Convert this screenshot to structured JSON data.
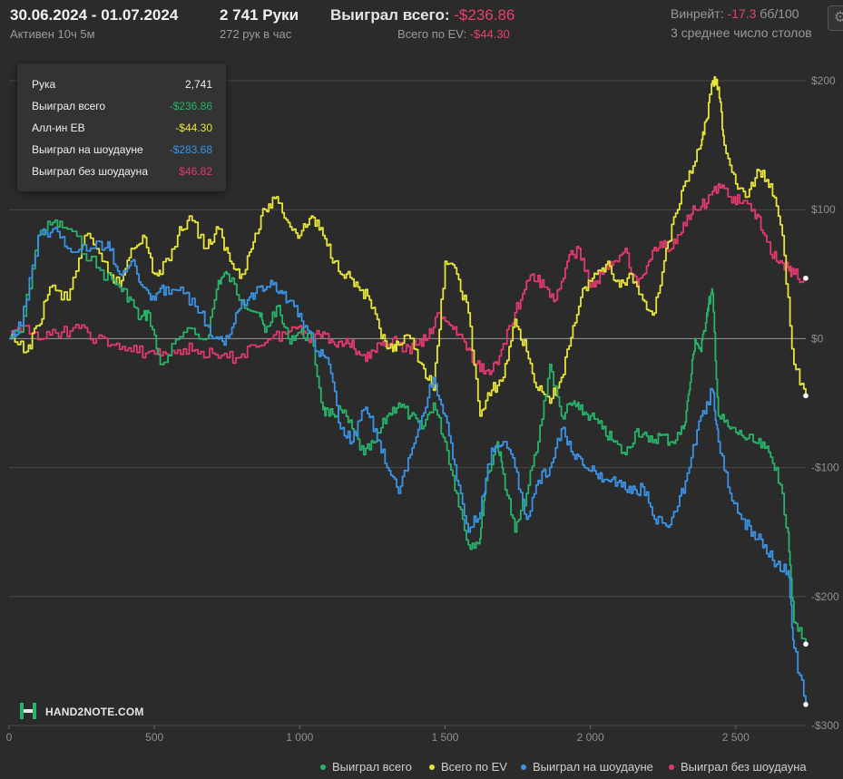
{
  "header": {
    "date_range": "30.06.2024 - 01.07.2024",
    "active": "Активен 10ч 5м",
    "hands": "2 741 Руки",
    "hands_per_hour": "272 рук в час",
    "won_total_label": "Выиграл всего:",
    "won_total_value": "-$236.86",
    "ev_label": "Всего по EV:",
    "ev_value": "-$44.30",
    "winrate_label": "Винрейт:",
    "winrate_value": "-17.3",
    "winrate_unit": "бб/100",
    "tables": "3 среднее число столов"
  },
  "tooltip": {
    "rows": [
      {
        "label": "Рука",
        "value": "2,741",
        "color": "#f0f0f0"
      },
      {
        "label": "Выиграл всего",
        "value": "-$236.86",
        "color": "#27b36a"
      },
      {
        "label": "Алл-ин EB",
        "value": "-$44.30",
        "color": "#e8e53a"
      },
      {
        "label": "Выиграл на шоудауне",
        "value": "-$283.68",
        "color": "#3b93e6"
      },
      {
        "label": "Выиграл без шоудауна",
        "value": "$46.82",
        "color": "#e23a6e"
      }
    ]
  },
  "logo": {
    "text": "HAND2NOTE.COM"
  },
  "chart_data": {
    "type": "line",
    "xlim": [
      0,
      2741
    ],
    "ylim": [
      -300,
      200
    ],
    "x_ticks": [
      {
        "v": 0,
        "label": "0"
      },
      {
        "v": 500,
        "label": "500"
      },
      {
        "v": 1000,
        "label": "1 000"
      },
      {
        "v": 1500,
        "label": "1 500"
      },
      {
        "v": 2000,
        "label": "2 000"
      },
      {
        "v": 2500,
        "label": "2 500"
      }
    ],
    "y_ticks": [
      {
        "v": 200,
        "label": "$200"
      },
      {
        "v": 100,
        "label": "$100"
      },
      {
        "v": 0,
        "label": "$0"
      },
      {
        "v": -100,
        "label": "-$100"
      },
      {
        "v": -200,
        "label": "-$200"
      },
      {
        "v": -300,
        "label": "-$300"
      }
    ],
    "grid": true,
    "legend_position": "bottom-right",
    "series": [
      {
        "name": "Выиграл всего",
        "color": "#27b36a",
        "x": [
          0,
          40,
          100,
          150,
          200,
          300,
          380,
          420,
          450,
          480,
          520,
          600,
          680,
          720,
          750,
          800,
          860,
          880,
          920,
          960,
          1000,
          1040,
          1080,
          1100,
          1140,
          1180,
          1220,
          1260,
          1300,
          1340,
          1380,
          1420,
          1460,
          1500,
          1540,
          1580,
          1620,
          1640,
          1680,
          1700,
          1740,
          1780,
          1820,
          1860,
          1900,
          1940,
          1960,
          2000,
          2040,
          2080,
          2120,
          2160,
          2200,
          2240,
          2280,
          2320,
          2340,
          2360,
          2380,
          2400,
          2410,
          2420,
          2440,
          2480,
          2520,
          2560,
          2600,
          2640,
          2680,
          2700,
          2741
        ],
        "y": [
          0,
          5,
          80,
          90,
          85,
          55,
          40,
          30,
          15,
          20,
          -20,
          5,
          0,
          45,
          50,
          30,
          20,
          5,
          25,
          0,
          5,
          0,
          -55,
          -60,
          -55,
          -70,
          -90,
          -80,
          -60,
          -50,
          -60,
          -70,
          -50,
          -80,
          -120,
          -160,
          -155,
          -110,
          -80,
          -105,
          -150,
          -120,
          -80,
          -20,
          -60,
          -50,
          -55,
          -60,
          -70,
          -80,
          -90,
          -70,
          -80,
          -75,
          -80,
          -70,
          -40,
          0,
          -10,
          20,
          30,
          35,
          -60,
          -70,
          -75,
          -80,
          -85,
          -100,
          -150,
          -220,
          -236.86
        ]
      },
      {
        "name": "Всего по EV",
        "color": "#e8e53a",
        "x": [
          0,
          60,
          100,
          140,
          200,
          260,
          320,
          380,
          420,
          460,
          500,
          520,
          580,
          620,
          680,
          720,
          760,
          800,
          840,
          880,
          920,
          960,
          1000,
          1040,
          1080,
          1120,
          1160,
          1200,
          1240,
          1280,
          1320,
          1340,
          1380,
          1420,
          1460,
          1500,
          1540,
          1580,
          1620,
          1660,
          1700,
          1740,
          1780,
          1820,
          1860,
          1900,
          1940,
          1980,
          2020,
          2060,
          2100,
          2140,
          2180,
          2220,
          2260,
          2300,
          2340,
          2380,
          2400,
          2420,
          2440,
          2460,
          2500,
          2540,
          2580,
          2620,
          2660,
          2700,
          2741
        ],
        "y": [
          0,
          -10,
          10,
          40,
          30,
          80,
          60,
          40,
          70,
          80,
          50,
          50,
          80,
          95,
          70,
          85,
          60,
          50,
          75,
          100,
          110,
          90,
          80,
          95,
          80,
          60,
          50,
          40,
          30,
          0,
          -10,
          -5,
          0,
          -20,
          -40,
          60,
          50,
          20,
          -60,
          -40,
          -30,
          15,
          -10,
          -40,
          -50,
          -30,
          10,
          40,
          50,
          60,
          40,
          50,
          30,
          20,
          70,
          100,
          130,
          150,
          170,
          200,
          195,
          150,
          120,
          110,
          130,
          120,
          80,
          -20,
          -44.3
        ]
      },
      {
        "name": "Выиграл на шоудауне",
        "color": "#3b93e6",
        "x": [
          0,
          40,
          100,
          150,
          200,
          280,
          340,
          380,
          420,
          460,
          500,
          540,
          600,
          660,
          700,
          740,
          780,
          820,
          860,
          900,
          940,
          980,
          1020,
          1060,
          1100,
          1140,
          1180,
          1220,
          1260,
          1300,
          1340,
          1380,
          1420,
          1460,
          1500,
          1540,
          1580,
          1620,
          1660,
          1700,
          1740,
          1780,
          1820,
          1860,
          1900,
          1940,
          1980,
          2020,
          2060,
          2100,
          2140,
          2180,
          2220,
          2260,
          2300,
          2340,
          2380,
          2420,
          2440,
          2480,
          2520,
          2560,
          2600,
          2640,
          2680,
          2700,
          2741
        ],
        "y": [
          0,
          10,
          80,
          85,
          70,
          70,
          75,
          50,
          60,
          40,
          30,
          40,
          35,
          20,
          0,
          -5,
          20,
          30,
          40,
          45,
          35,
          25,
          10,
          -10,
          -20,
          -70,
          -80,
          -55,
          -70,
          -100,
          -120,
          -90,
          -60,
          -30,
          -60,
          -110,
          -150,
          -135,
          -85,
          -80,
          -100,
          -140,
          -110,
          -100,
          -70,
          -90,
          -100,
          -105,
          -110,
          -110,
          -120,
          -115,
          -140,
          -145,
          -130,
          -100,
          -60,
          -40,
          -80,
          -120,
          -140,
          -150,
          -160,
          -175,
          -180,
          -240,
          -283.68
        ]
      },
      {
        "name": "Выиграл без шоудауна",
        "color": "#e23a6e",
        "x": [
          0,
          60,
          120,
          180,
          240,
          300,
          360,
          420,
          480,
          540,
          600,
          660,
          720,
          780,
          840,
          900,
          960,
          1000,
          1040,
          1080,
          1120,
          1160,
          1200,
          1240,
          1280,
          1320,
          1360,
          1400,
          1440,
          1480,
          1520,
          1560,
          1600,
          1640,
          1680,
          1720,
          1760,
          1800,
          1840,
          1880,
          1920,
          1960,
          2000,
          2040,
          2080,
          2120,
          2160,
          2200,
          2240,
          2280,
          2320,
          2360,
          2400,
          2440,
          2480,
          2520,
          2560,
          2600,
          2640,
          2680,
          2700,
          2741
        ],
        "y": [
          0,
          10,
          0,
          5,
          8,
          0,
          -5,
          -10,
          -10,
          -12,
          -8,
          -10,
          -15,
          -15,
          -5,
          0,
          5,
          10,
          0,
          5,
          -5,
          0,
          -10,
          -15,
          -5,
          0,
          -10,
          -5,
          0,
          20,
          10,
          0,
          -20,
          -25,
          -20,
          10,
          30,
          50,
          40,
          30,
          60,
          70,
          40,
          50,
          60,
          70,
          40,
          60,
          75,
          70,
          90,
          100,
          105,
          120,
          110,
          105,
          100,
          80,
          60,
          55,
          50,
          46.82
        ]
      }
    ]
  }
}
